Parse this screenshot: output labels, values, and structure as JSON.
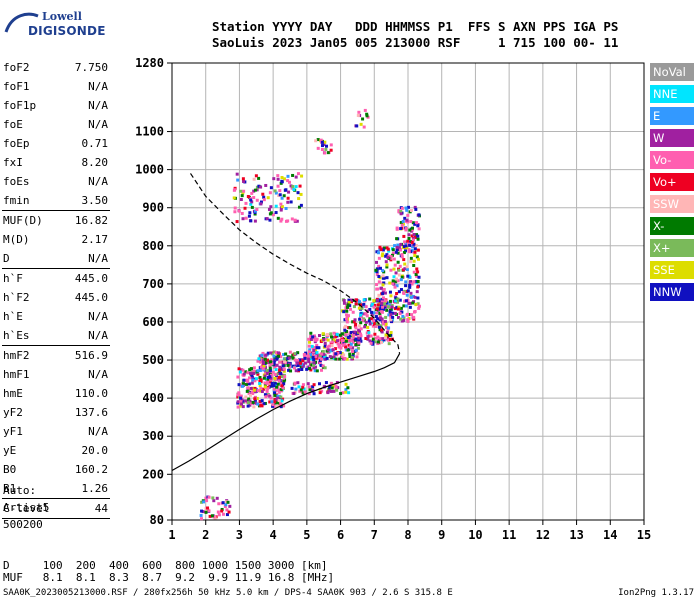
{
  "logo": {
    "line1": "Lowell",
    "line2": "DIGISONDE"
  },
  "header": {
    "line1": "Station YYYY DAY   DDD HHMMSS P1  FFS S AXN PPS IGA PS",
    "line2": "SaoLuis 2023 Jan05 005 213000 RSF     1 715 100 00- 11"
  },
  "params": [
    {
      "name": "foF2",
      "value": "7.750"
    },
    {
      "name": "foF1",
      "value": "N/A"
    },
    {
      "name": "foF1p",
      "value": "N/A"
    },
    {
      "name": "foE",
      "value": "N/A"
    },
    {
      "name": "foEp",
      "value": "0.71"
    },
    {
      "name": "fxI",
      "value": "8.20"
    },
    {
      "name": "foEs",
      "value": "N/A"
    },
    {
      "name": "fmin",
      "value": "3.50"
    },
    {
      "sep": true
    },
    {
      "name": "MUF(D)",
      "value": "16.82"
    },
    {
      "name": "M(D)",
      "value": "2.17"
    },
    {
      "name": "D",
      "value": "N/A"
    },
    {
      "sep": true
    },
    {
      "name": "h`F",
      "value": "445.0"
    },
    {
      "name": "h`F2",
      "value": "445.0"
    },
    {
      "name": "h`E",
      "value": "N/A"
    },
    {
      "name": "h`Es",
      "value": "N/A"
    },
    {
      "sep": true
    },
    {
      "name": "hmF2",
      "value": "516.9"
    },
    {
      "name": "hmF1",
      "value": "N/A"
    },
    {
      "name": "hmE",
      "value": "110.0"
    },
    {
      "name": "yF2",
      "value": "137.6"
    },
    {
      "name": "yF1",
      "value": "N/A"
    },
    {
      "name": "yE",
      "value": "20.0"
    },
    {
      "name": "B0",
      "value": "160.2"
    },
    {
      "name": "B1",
      "value": "1.26"
    },
    {
      "sep": true
    },
    {
      "name": "C-level",
      "value": "44"
    },
    {
      "sep": true
    }
  ],
  "auto": {
    "line1": "Auto:",
    "line2": "Artist5",
    "line3": "500200"
  },
  "legend": [
    {
      "label": "NoVal",
      "color": "#9a9a9a"
    },
    {
      "label": "NNE",
      "color": "#00e5ff"
    },
    {
      "label": "E",
      "color": "#3399ff"
    },
    {
      "label": "W",
      "color": "#a020a0"
    },
    {
      "label": "Vo-",
      "color": "#ff5fb0"
    },
    {
      "label": "Vo+",
      "color": "#ee0022"
    },
    {
      "label": "SSW",
      "color": "#ffb6b6"
    },
    {
      "label": "X-",
      "color": "#007a00"
    },
    {
      "label": "X+",
      "color": "#7aba5a"
    },
    {
      "label": "SSE",
      "color": "#dddd00"
    },
    {
      "label": "NNW",
      "color": "#1010c0"
    }
  ],
  "distance_table": {
    "line1": "D     100  200  400  600  800 1000 1500 3000 [km]",
    "line2": "MUF   8.1  8.1  8.3  8.7  9.2  9.9 11.9 16.8 [MHz]"
  },
  "footer": {
    "left": "SAA0K_2023005213000.RSF / 280fx256h 50 kHz 5.0 km / DPS-4 SAA0K 903 / 2.6 S 315.8 E",
    "right": "Ion2Png 1.3.17"
  },
  "chart_data": {
    "type": "scatter",
    "title": "",
    "xlabel": "",
    "ylabel": "",
    "xlim": [
      1,
      15
    ],
    "ylim": [
      80,
      1280
    ],
    "x_ticks": [
      1,
      2,
      3,
      4,
      5,
      6,
      7,
      8,
      9,
      10,
      11,
      12,
      13,
      14,
      15
    ],
    "y_ticks": [
      80,
      200,
      300,
      400,
      500,
      600,
      700,
      800,
      900,
      1000,
      1100,
      1280
    ],
    "grid": true,
    "series": [
      {
        "style": "solid",
        "color": "#000000",
        "points": [
          [
            1.0,
            210
          ],
          [
            1.5,
            235
          ],
          [
            2.0,
            262
          ],
          [
            2.5,
            290
          ],
          [
            3.0,
            318
          ],
          [
            3.5,
            345
          ],
          [
            4.0,
            370
          ],
          [
            4.5,
            392
          ],
          [
            5.0,
            412
          ],
          [
            5.5,
            428
          ],
          [
            6.0,
            442
          ],
          [
            6.5,
            456
          ],
          [
            7.0,
            470
          ],
          [
            7.3,
            480
          ],
          [
            7.6,
            493
          ],
          [
            7.75,
            517
          ]
        ]
      },
      {
        "style": "dashed",
        "color": "#000000",
        "points": [
          [
            1.55,
            990
          ],
          [
            2.0,
            930
          ],
          [
            2.5,
            885
          ],
          [
            3.0,
            842
          ],
          [
            3.5,
            808
          ],
          [
            4.0,
            778
          ],
          [
            4.5,
            752
          ],
          [
            5.0,
            728
          ],
          [
            5.5,
            708
          ],
          [
            6.0,
            682
          ],
          [
            6.5,
            650
          ],
          [
            7.0,
            610
          ],
          [
            7.4,
            568
          ],
          [
            7.7,
            540
          ],
          [
            7.75,
            517
          ]
        ]
      }
    ],
    "echo_regions": [
      {
        "x_range": [
          2.9,
          4.3
        ],
        "y_range": [
          375,
          480
        ],
        "count": 260
      },
      {
        "x_range": [
          3.5,
          5.5
        ],
        "y_range": [
          470,
          520
        ],
        "count": 200
      },
      {
        "x_range": [
          5.0,
          6.5
        ],
        "y_range": [
          500,
          570
        ],
        "count": 200
      },
      {
        "x_range": [
          6.0,
          7.5
        ],
        "y_range": [
          540,
          660
        ],
        "count": 260
      },
      {
        "x_range": [
          7.0,
          8.3
        ],
        "y_range": [
          600,
          800
        ],
        "count": 240
      },
      {
        "x_range": [
          7.6,
          8.3
        ],
        "y_range": [
          780,
          900
        ],
        "count": 90
      },
      {
        "x_range": [
          4.5,
          6.2
        ],
        "y_range": [
          410,
          440
        ],
        "count": 60
      },
      {
        "x_range": [
          2.8,
          4.8
        ],
        "y_range": [
          860,
          990
        ],
        "count": 130
      },
      {
        "x_range": [
          1.8,
          2.7
        ],
        "y_range": [
          82,
          140
        ],
        "count": 45
      },
      {
        "x_range": [
          5.2,
          5.7
        ],
        "y_range": [
          1040,
          1080
        ],
        "count": 20
      },
      {
        "x_range": [
          6.4,
          6.8
        ],
        "y_range": [
          1110,
          1160
        ],
        "count": 12
      }
    ]
  }
}
